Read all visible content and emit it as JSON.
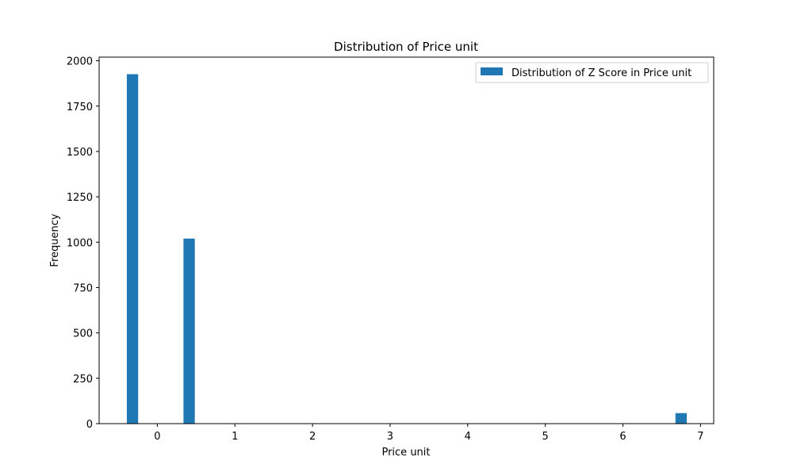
{
  "chart_data": {
    "type": "bar",
    "title": "Distribution of Price unit",
    "xlabel": "Price unit",
    "ylabel": "Frequency",
    "xlim": [
      -0.75,
      7.17
    ],
    "ylim": [
      0,
      2020
    ],
    "xticks": [
      0,
      1,
      2,
      3,
      4,
      5,
      6,
      7
    ],
    "yticks": [
      0,
      250,
      500,
      750,
      1000,
      1250,
      1500,
      1750,
      2000
    ],
    "legend_position": "top-right",
    "grid": false,
    "series": [
      {
        "name": "Distribution of Z Score in Price unit",
        "color": "#1f77b4",
        "bin_width": 0.146,
        "bars": [
          {
            "x": -0.32,
            "value": 1926
          },
          {
            "x": 0.41,
            "value": 1020
          },
          {
            "x": 6.75,
            "value": 58
          }
        ]
      }
    ]
  }
}
